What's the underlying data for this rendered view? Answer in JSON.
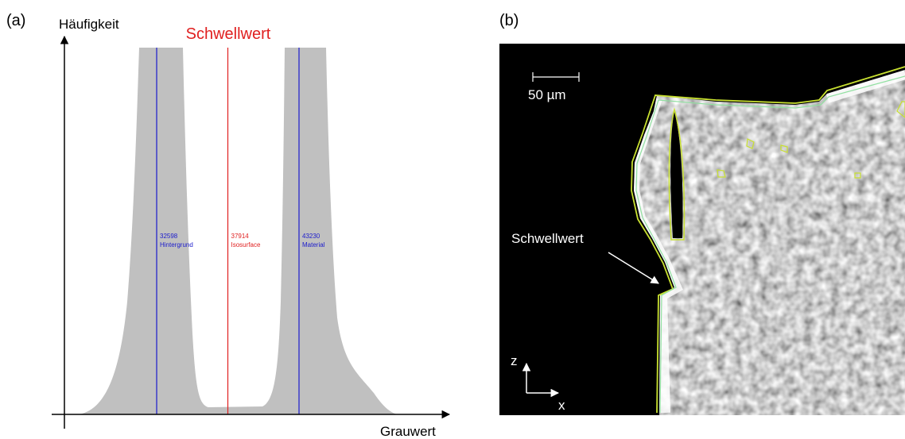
{
  "panel_a": {
    "label": "(a)",
    "y_axis_label": "Häufigkeit",
    "x_axis_label": "Grauwert",
    "threshold_title": "Schwellwert",
    "markers": [
      {
        "value": 32598,
        "name": "Hintergrund",
        "color": "#1a1acc"
      },
      {
        "value": 37914,
        "name": "Isosurface",
        "color": "#e02020"
      },
      {
        "value": 43230,
        "name": "Material",
        "color": "#1a1acc"
      }
    ]
  },
  "panel_b": {
    "label": "(b)",
    "scale_bar": "50 µm",
    "annotation": "Schwellwert",
    "axis_z": "z",
    "axis_x": "x"
  }
}
